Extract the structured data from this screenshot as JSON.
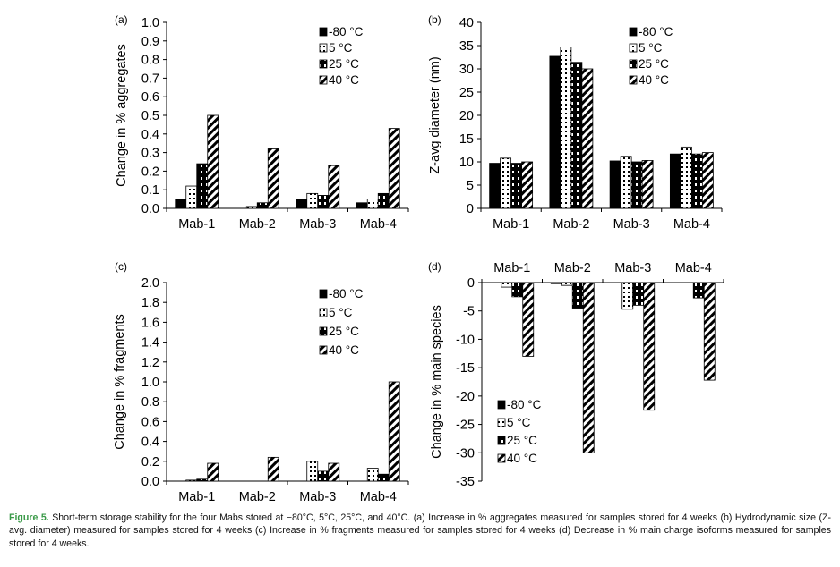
{
  "chart_data": [
    {
      "panel_label": "(a)",
      "type": "bar",
      "categories": [
        "Mab-1",
        "Mab-2",
        "Mab-3",
        "Mab-4"
      ],
      "ylabel": "Change in % aggregates",
      "ylim": [
        0,
        1.0
      ],
      "yticks": [
        "0.0",
        "0.1",
        "0.2",
        "0.3",
        "0.4",
        "0.5",
        "0.6",
        "0.7",
        "0.8",
        "0.9",
        "1.0"
      ],
      "legend_position": "top-right",
      "series": [
        {
          "name": "-80 °C",
          "values": [
            0.05,
            0.0,
            0.05,
            0.03
          ]
        },
        {
          "name": "5 °C",
          "values": [
            0.12,
            0.01,
            0.08,
            0.05
          ]
        },
        {
          "name": "25 °C",
          "values": [
            0.24,
            0.03,
            0.07,
            0.08
          ]
        },
        {
          "name": "40 °C",
          "values": [
            0.5,
            0.32,
            0.23,
            0.43
          ]
        }
      ]
    },
    {
      "panel_label": "(b)",
      "type": "bar",
      "categories": [
        "Mab-1",
        "Mab-2",
        "Mab-3",
        "Mab-4"
      ],
      "ylabel": "Z-avg diameter (nm)",
      "ylim": [
        0,
        40
      ],
      "yticks": [
        "0",
        "5",
        "10",
        "15",
        "20",
        "25",
        "30",
        "35",
        "40"
      ],
      "legend_position": "top-right",
      "series": [
        {
          "name": "-80 °C",
          "values": [
            9.7,
            32.7,
            10.2,
            11.7
          ]
        },
        {
          "name": "5 °C",
          "values": [
            10.8,
            34.7,
            11.2,
            13.2
          ]
        },
        {
          "name": "25 °C",
          "values": [
            9.7,
            31.4,
            10.0,
            11.7
          ]
        },
        {
          "name": "40 °C",
          "values": [
            10.0,
            30.0,
            10.3,
            12.0
          ]
        }
      ]
    },
    {
      "panel_label": "(c)",
      "type": "bar",
      "categories": [
        "Mab-1",
        "Mab-2",
        "Mab-3",
        "Mab-4"
      ],
      "ylabel": "Change in % fragments",
      "ylim": [
        0,
        2.0
      ],
      "yticks": [
        "0.0",
        "0.2",
        "0.4",
        "0.6",
        "0.8",
        "1.0",
        "1.2",
        "1.4",
        "1.6",
        "1.8",
        "2.0"
      ],
      "legend_position": "top-right",
      "series": [
        {
          "name": "-80 °C",
          "values": [
            0.0,
            0.0,
            0.0,
            0.0
          ]
        },
        {
          "name": "5 °C",
          "values": [
            0.01,
            0.0,
            0.2,
            0.13
          ]
        },
        {
          "name": "25 °C",
          "values": [
            0.02,
            0.0,
            0.1,
            0.07
          ]
        },
        {
          "name": "40 °C",
          "values": [
            0.18,
            0.24,
            0.18,
            1.0
          ]
        }
      ]
    },
    {
      "panel_label": "(d)",
      "type": "bar",
      "categories": [
        "Mab-1",
        "Mab-2",
        "Mab-3",
        "Mab-4"
      ],
      "ylabel": "Change in % main species",
      "ylim": [
        -35,
        0
      ],
      "yticks": [
        "0",
        "-5",
        "-10",
        "-15",
        "-20",
        "-25",
        "-30",
        "-35"
      ],
      "category_axis_position": "top",
      "legend_position": "bottom-left",
      "series": [
        {
          "name": "-80 °C",
          "values": [
            0.0,
            -0.2,
            0.0,
            0.0
          ]
        },
        {
          "name": "5 °C",
          "values": [
            -0.8,
            -0.5,
            -4.7,
            0.0
          ]
        },
        {
          "name": "25 °C",
          "values": [
            -2.5,
            -4.5,
            -4.0,
            -2.7
          ]
        },
        {
          "name": "40 °C",
          "values": [
            -13.0,
            -30.0,
            -22.5,
            -17.2
          ]
        }
      ]
    }
  ],
  "caption": {
    "label": "Figure 5.",
    "text": " Short-term storage stability for the four Mabs stored at −80°C, 5°C, 25°C, and 40°C. (a) Increase in % aggregates measured for samples stored for 4 weeks (b) Hydrodynamic size (Z-avg. diameter) measured for samples stored for 4 weeks (c) Increase in % fragments measured for samples stored for 4 weeks (d) Decrease in % main charge isoforms measured for samples stored for 4 weeks."
  }
}
